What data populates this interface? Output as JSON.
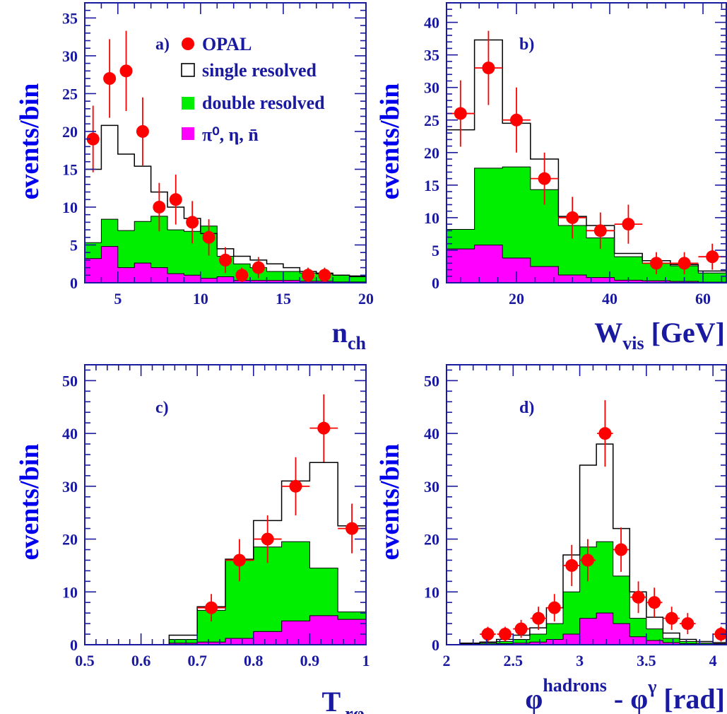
{
  "chart_data": [
    {
      "panel": "a",
      "type": "histogram",
      "label": "a)",
      "xlabel": "n",
      "xlabel_sub": "ch",
      "ylabel": "events/bin",
      "xlim": [
        3,
        20
      ],
      "ylim": [
        0,
        37
      ],
      "xticks": [
        5,
        10,
        15,
        20
      ],
      "yticks": [
        0,
        5,
        10,
        15,
        20,
        25,
        30,
        35
      ],
      "edges": [
        3,
        4,
        5,
        6,
        7,
        8,
        9,
        10,
        11,
        12,
        13,
        14,
        15,
        16,
        17,
        18,
        19,
        20
      ],
      "magenta": [
        3.2,
        4.8,
        2.0,
        2.6,
        2.0,
        1.2,
        1.0,
        0.6,
        0.8,
        0.3,
        0.3,
        0.3,
        0.3,
        0.2,
        0.2,
        0.1,
        0.1
      ],
      "green": [
        5.3,
        8.4,
        6.9,
        8.1,
        8.8,
        7.0,
        6.8,
        7.5,
        3.5,
        2.5,
        2.0,
        1.5,
        1.5,
        1.3,
        1.3,
        1.0,
        0.8
      ],
      "single": [
        15.0,
        20.8,
        17.0,
        15.4,
        12.0,
        10.0,
        8.5,
        6.5,
        4.5,
        3.5,
        3.0,
        2.5,
        2.0,
        1.5,
        1.2,
        1.0,
        0.9
      ],
      "data": [
        {
          "x": 3.5,
          "y": 19,
          "e": 4.4
        },
        {
          "x": 4.5,
          "y": 27,
          "e": 5.2
        },
        {
          "x": 5.5,
          "y": 28,
          "e": 5.3
        },
        {
          "x": 6.5,
          "y": 20,
          "e": 4.5
        },
        {
          "x": 7.5,
          "y": 10,
          "e": 3.2
        },
        {
          "x": 8.5,
          "y": 11,
          "e": 3.3
        },
        {
          "x": 9.5,
          "y": 8,
          "e": 2.8
        },
        {
          "x": 10.5,
          "y": 6,
          "e": 2.4
        },
        {
          "x": 11.5,
          "y": 3,
          "e": 1.7
        },
        {
          "x": 12.5,
          "y": 1,
          "e": 1.0
        },
        {
          "x": 13.5,
          "y": 2,
          "e": 1.4
        },
        {
          "x": 16.5,
          "y": 1,
          "e": 1.0
        },
        {
          "x": 17.5,
          "y": 1,
          "e": 1.0
        }
      ]
    },
    {
      "panel": "b",
      "type": "histogram",
      "label": "b)",
      "xlabel": "W",
      "xlabel_sub": "vis",
      "xlabel_tail": " [GeV]",
      "ylabel": "events/bin",
      "xlim": [
        5,
        65
      ],
      "ylim": [
        0,
        43
      ],
      "xticks": [
        20,
        40,
        60
      ],
      "yticks": [
        0,
        5,
        10,
        15,
        20,
        25,
        30,
        35,
        40
      ],
      "edges": [
        5,
        11,
        17,
        23,
        29,
        35,
        41,
        47,
        53,
        59,
        65
      ],
      "magenta": [
        5.2,
        5.8,
        3.8,
        2.5,
        1.2,
        0.8,
        0.4,
        0.3,
        0.2,
        0.1
      ],
      "green": [
        8.2,
        17.6,
        17.8,
        14.3,
        8.8,
        6.9,
        4.0,
        3.0,
        2.6,
        1.5
      ],
      "single": [
        23.5,
        37.3,
        24.5,
        19.0,
        10.2,
        8.8,
        4.5,
        3.4,
        2.8,
        1.8
      ],
      "data": [
        {
          "x": 8,
          "y": 26,
          "xe": 3,
          "e": 5.1
        },
        {
          "x": 14,
          "y": 33,
          "xe": 3,
          "e": 5.7
        },
        {
          "x": 20,
          "y": 25,
          "xe": 3,
          "e": 5.0
        },
        {
          "x": 26,
          "y": 16,
          "xe": 3,
          "e": 4.0
        },
        {
          "x": 32,
          "y": 10,
          "xe": 3,
          "e": 3.2
        },
        {
          "x": 38,
          "y": 8,
          "xe": 3,
          "e": 2.8
        },
        {
          "x": 44,
          "y": 9,
          "xe": 3,
          "e": 3.0
        },
        {
          "x": 50,
          "y": 3,
          "xe": 3,
          "e": 1.7
        },
        {
          "x": 56,
          "y": 3,
          "xe": 3,
          "e": 1.7
        },
        {
          "x": 62,
          "y": 4,
          "xe": 3,
          "e": 2.0
        }
      ]
    },
    {
      "panel": "c",
      "type": "histogram",
      "label": "c)",
      "xlabel": "T",
      "xlabel_sub": "rφ",
      "ylabel": "events/bin",
      "xlim": [
        0.5,
        1.0
      ],
      "ylim": [
        0,
        53
      ],
      "xticks": [
        0.5,
        0.6,
        0.7,
        0.8,
        0.9,
        1.0
      ],
      "xticklabels": [
        "0.5",
        "0.6",
        "0.7",
        "0.8",
        "0.9",
        "1"
      ],
      "yticks": [
        0,
        10,
        20,
        30,
        40,
        50
      ],
      "edges": [
        0.65,
        0.7,
        0.75,
        0.8,
        0.85,
        0.9,
        0.95,
        1.0
      ],
      "magenta": [
        0.3,
        0.5,
        1.2,
        2.5,
        4.5,
        5.5,
        4.8
      ],
      "green": [
        1.0,
        6.5,
        16.0,
        18.5,
        19.5,
        14.5,
        6.2
      ],
      "single": [
        1.8,
        7.2,
        16.2,
        23.5,
        31.0,
        34.5,
        22.5
      ],
      "data": [
        {
          "x": 0.725,
          "y": 7,
          "xe": 0.025,
          "e": 2.6
        },
        {
          "x": 0.775,
          "y": 16,
          "xe": 0.025,
          "e": 4.0
        },
        {
          "x": 0.825,
          "y": 20,
          "xe": 0.025,
          "e": 4.5
        },
        {
          "x": 0.875,
          "y": 30,
          "xe": 0.025,
          "e": 5.5
        },
        {
          "x": 0.925,
          "y": 41,
          "xe": 0.025,
          "e": 6.4
        },
        {
          "x": 0.975,
          "y": 22,
          "xe": 0.025,
          "e": 4.7
        }
      ]
    },
    {
      "panel": "d",
      "type": "histogram",
      "label": "d)",
      "xlabel": "φ",
      "xlabel_sup": "hadrons",
      "xlabel_mid": " - φ",
      "xlabel_sup2": "γ",
      "xlabel_tail": " [rad]",
      "ylabel": "events/bin",
      "xlim": [
        2.0,
        4.1
      ],
      "ylim": [
        0,
        53
      ],
      "xticks": [
        2.0,
        2.5,
        3.0,
        3.5,
        4.0
      ],
      "xticklabels": [
        "2",
        "2.5",
        "3",
        "3.5",
        "4"
      ],
      "yticks": [
        0,
        10,
        20,
        30,
        40,
        50
      ],
      "edges": [
        2.1,
        2.25,
        2.375,
        2.5,
        2.625,
        2.75,
        2.875,
        3.0,
        3.125,
        3.25,
        3.375,
        3.5,
        3.625,
        3.75,
        3.875,
        4.0,
        4.1
      ],
      "magenta": [
        0.1,
        0.1,
        0.2,
        0.3,
        0.5,
        1.0,
        2.0,
        5.0,
        6.0,
        4.0,
        1.5,
        0.8,
        0.4,
        0.2,
        0.1,
        0.1
      ],
      "green": [
        0.2,
        0.3,
        0.6,
        1.0,
        2.0,
        4.0,
        10.0,
        18.5,
        19.5,
        13.0,
        5.0,
        3.0,
        1.2,
        0.6,
        0.3,
        0.2
      ],
      "single": [
        0.3,
        0.5,
        1.0,
        1.8,
        3.2,
        7.0,
        17.0,
        34.0,
        38.0,
        22.0,
        10.0,
        5.2,
        2.2,
        1.0,
        0.6,
        0.4
      ],
      "data": [
        {
          "x": 2.31,
          "y": 2,
          "xe": 0.06,
          "e": 1.4
        },
        {
          "x": 2.44,
          "y": 2,
          "xe": 0.06,
          "e": 1.4
        },
        {
          "x": 2.56,
          "y": 3,
          "xe": 0.06,
          "e": 1.7
        },
        {
          "x": 2.69,
          "y": 5,
          "xe": 0.06,
          "e": 2.2
        },
        {
          "x": 2.81,
          "y": 7,
          "xe": 0.06,
          "e": 2.6
        },
        {
          "x": 2.94,
          "y": 15,
          "xe": 0.06,
          "e": 3.9
        },
        {
          "x": 3.06,
          "y": 16,
          "xe": 0.06,
          "e": 4.0
        },
        {
          "x": 3.19,
          "y": 40,
          "xe": 0.06,
          "e": 6.3
        },
        {
          "x": 3.31,
          "y": 18,
          "xe": 0.06,
          "e": 4.2
        },
        {
          "x": 3.44,
          "y": 9,
          "xe": 0.06,
          "e": 3.0
        },
        {
          "x": 3.56,
          "y": 8,
          "xe": 0.06,
          "e": 2.8
        },
        {
          "x": 3.69,
          "y": 5,
          "xe": 0.06,
          "e": 2.2
        },
        {
          "x": 3.81,
          "y": 4,
          "xe": 0.06,
          "e": 2.0
        },
        {
          "x": 4.06,
          "y": 2,
          "xe": 0.06,
          "e": 1.4
        }
      ]
    }
  ],
  "legend": {
    "placement": "top-right of panel a",
    "items": [
      {
        "label": "OPAL",
        "marker": "red-dot-icon"
      },
      {
        "label": "single resolved",
        "marker": "open-box-icon"
      },
      {
        "label": "double resolved",
        "marker": "green-box-icon"
      },
      {
        "label": "π⁰, η, n̄",
        "marker": "magenta-box-icon"
      }
    ]
  },
  "colors": {
    "axis": "#1a1aa0",
    "ylabel": "#0000ee",
    "data_marker": "#ff0000",
    "single_resolved": "#000000",
    "double_resolved": "#00ee00",
    "pi0_eta_nbar": "#ff00ff"
  }
}
